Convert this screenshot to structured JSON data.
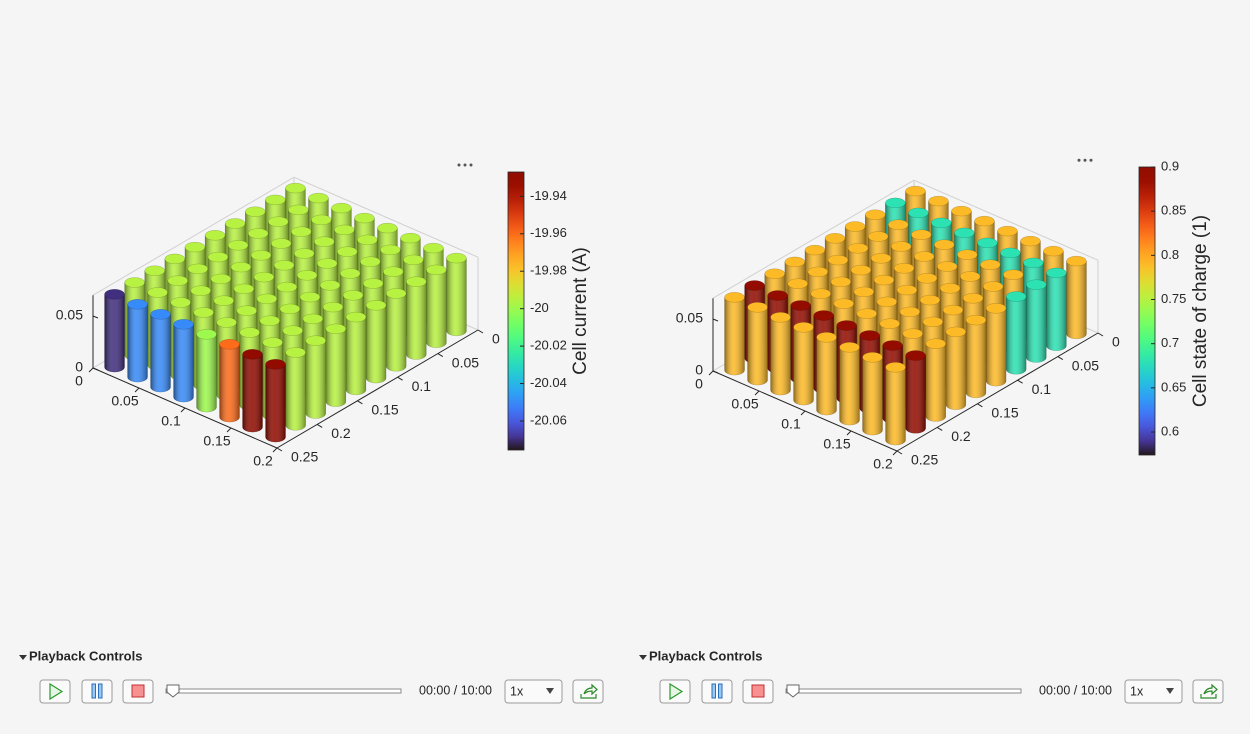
{
  "panels": [
    {
      "chart": {
        "type": "bar3",
        "xlim": [
          0,
          0.2
        ],
        "ylim": [
          0,
          0.25
        ],
        "zlim": [
          0,
          0.07
        ],
        "xticks": [
          0,
          0.05,
          0.1,
          0.15,
          0.2
        ],
        "yticks": [
          0,
          0.05,
          0.1,
          0.15,
          0.2,
          0.25
        ],
        "zticks": [
          0,
          0.05
        ],
        "values": [
          [
            -19.995,
            -19.995,
            -19.995,
            -19.995,
            -19.995,
            -19.995,
            -19.995,
            -19.995,
            -19.995,
            -20.07
          ],
          [
            -19.995,
            -19.995,
            -19.995,
            -19.995,
            -19.995,
            -19.995,
            -19.995,
            -19.995,
            -19.995,
            -20.05
          ],
          [
            -19.995,
            -19.995,
            -19.995,
            -19.995,
            -19.995,
            -19.995,
            -19.995,
            -19.995,
            -19.995,
            -20.05
          ],
          [
            -19.995,
            -19.995,
            -19.995,
            -19.995,
            -19.995,
            -19.995,
            -19.995,
            -19.995,
            -19.995,
            -20.05
          ],
          [
            -19.995,
            -19.995,
            -19.995,
            -19.995,
            -19.995,
            -19.995,
            -19.995,
            -19.995,
            -19.995,
            -20.0
          ],
          [
            -19.995,
            -19.995,
            -19.995,
            -19.995,
            -19.995,
            -19.995,
            -19.995,
            -19.995,
            -19.995,
            -19.96
          ],
          [
            -19.995,
            -19.995,
            -19.995,
            -19.995,
            -19.995,
            -19.995,
            -19.995,
            -19.995,
            -19.995,
            -19.93
          ],
          [
            -19.995,
            -19.995,
            -19.995,
            -19.995,
            -19.995,
            -19.995,
            -19.995,
            -19.995,
            -19.995,
            -19.93
          ]
        ],
        "colorbar": {
          "label": "Cell current (A)",
          "lim": [
            -20.0755,
            -19.927
          ],
          "ticks": [
            -20.06,
            -20.04,
            -20.02,
            -20,
            -19.98,
            -19.96,
            -19.94
          ]
        }
      },
      "playback": {
        "title": "Playback Controls",
        "time": "00:00 / 10:00",
        "speed": "1x"
      }
    },
    {
      "chart": {
        "type": "bar3",
        "xlim": [
          0,
          0.2
        ],
        "ylim": [
          0,
          0.25
        ],
        "zlim": [
          0,
          0.07
        ],
        "xticks": [
          0,
          0.05,
          0.1,
          0.15,
          0.2
        ],
        "yticks": [
          0,
          0.05,
          0.1,
          0.15,
          0.2,
          0.25
        ],
        "zticks": [
          0,
          0.05
        ],
        "values": [
          [
            0.79,
            0.68,
            0.79,
            0.79,
            0.79,
            0.79,
            0.79,
            0.79,
            0.89,
            0.79
          ],
          [
            0.79,
            0.68,
            0.79,
            0.79,
            0.79,
            0.79,
            0.79,
            0.79,
            0.89,
            0.79
          ],
          [
            0.79,
            0.68,
            0.79,
            0.79,
            0.79,
            0.79,
            0.79,
            0.79,
            0.89,
            0.79
          ],
          [
            0.79,
            0.68,
            0.79,
            0.79,
            0.79,
            0.79,
            0.79,
            0.79,
            0.89,
            0.79
          ],
          [
            0.79,
            0.68,
            0.79,
            0.79,
            0.79,
            0.79,
            0.79,
            0.79,
            0.89,
            0.79
          ],
          [
            0.79,
            0.68,
            0.79,
            0.79,
            0.79,
            0.79,
            0.79,
            0.79,
            0.89,
            0.79
          ],
          [
            0.79,
            0.68,
            0.79,
            0.79,
            0.79,
            0.79,
            0.79,
            0.79,
            0.89,
            0.79
          ],
          [
            0.79,
            0.68,
            0.68,
            0.68,
            0.79,
            0.79,
            0.79,
            0.79,
            0.89,
            0.79
          ]
        ],
        "colorbar": {
          "label": "Cell state of charge (1)",
          "lim": [
            0.574,
            0.9
          ],
          "ticks": [
            0.6,
            0.65,
            0.7,
            0.75,
            0.8,
            0.85,
            0.9
          ]
        }
      },
      "playback": {
        "title": "Playback Controls",
        "time": "00:00 / 10:00",
        "speed": "1x"
      }
    }
  ]
}
